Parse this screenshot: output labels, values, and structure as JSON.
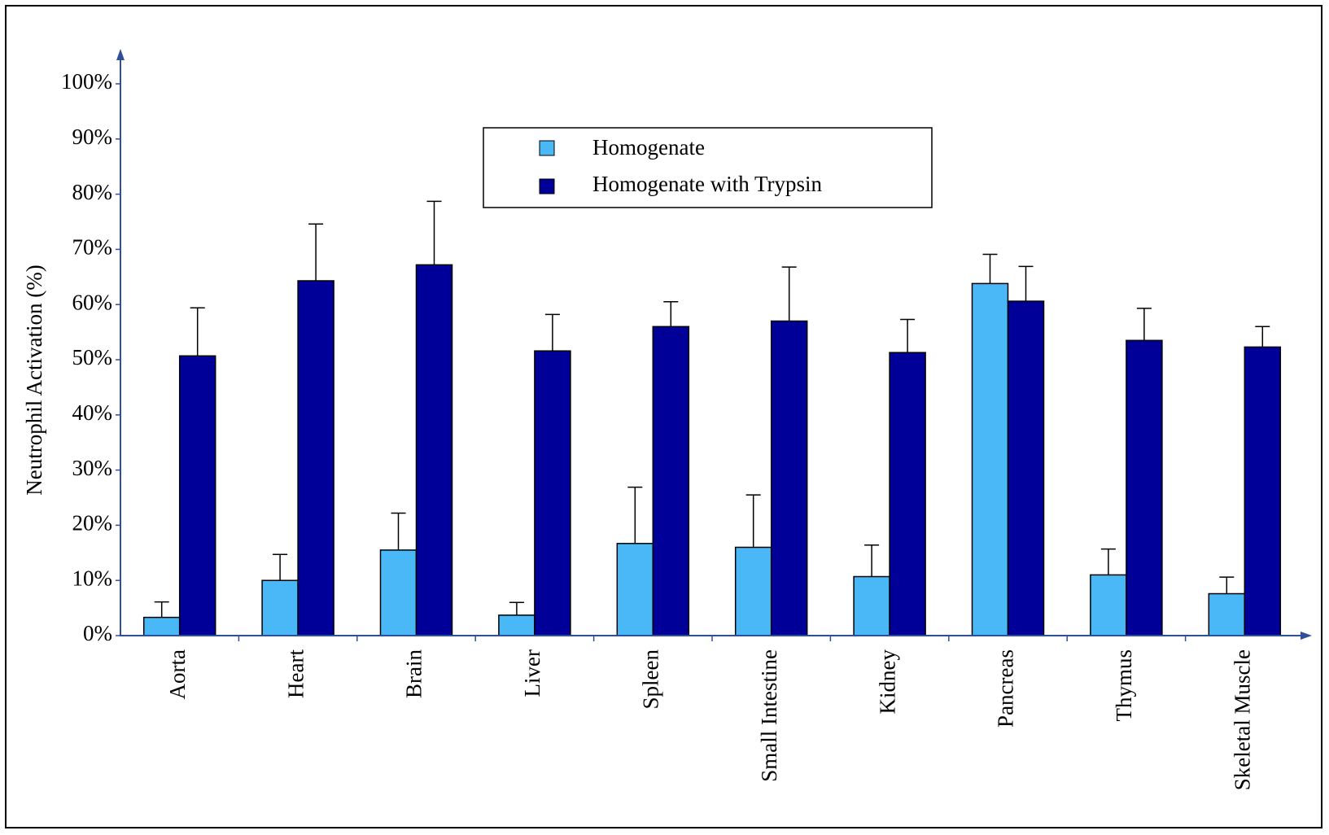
{
  "chart_data": {
    "type": "bar",
    "title": "",
    "xlabel": "",
    "ylabel": "Neutrophil Activation (%)",
    "ylim": [
      0,
      100
    ],
    "y_ticks": [
      "0%",
      "10%",
      "20%",
      "30%",
      "40%",
      "50%",
      "60%",
      "70%",
      "80%",
      "90%",
      "100%"
    ],
    "categories": [
      "Aorta",
      "Heart",
      "Brain",
      "Liver",
      "Spleen",
      "Small Intestine",
      "Kidney",
      "Pancreas",
      "Thymus",
      "Skeletal Muscle"
    ],
    "series": [
      {
        "name": "Homogenate",
        "color": "#4AB8F7",
        "values": [
          3.3,
          10.0,
          15.5,
          3.7,
          16.7,
          16.0,
          10.7,
          63.8,
          11.0,
          7.6
        ],
        "errors": [
          2.8,
          4.7,
          6.7,
          2.3,
          10.2,
          9.5,
          5.7,
          5.3,
          4.7,
          3.0
        ]
      },
      {
        "name": "Homogenate with Trypsin",
        "color": "#000099",
        "values": [
          50.7,
          64.3,
          67.2,
          51.6,
          56.0,
          57.0,
          51.3,
          60.6,
          53.5,
          52.3
        ],
        "errors": [
          8.7,
          10.3,
          11.5,
          6.6,
          4.5,
          9.8,
          6.0,
          6.3,
          5.8,
          3.7
        ]
      }
    ],
    "legend_position": "top-center",
    "grid": false,
    "axis_color": "#2F4F9A"
  }
}
